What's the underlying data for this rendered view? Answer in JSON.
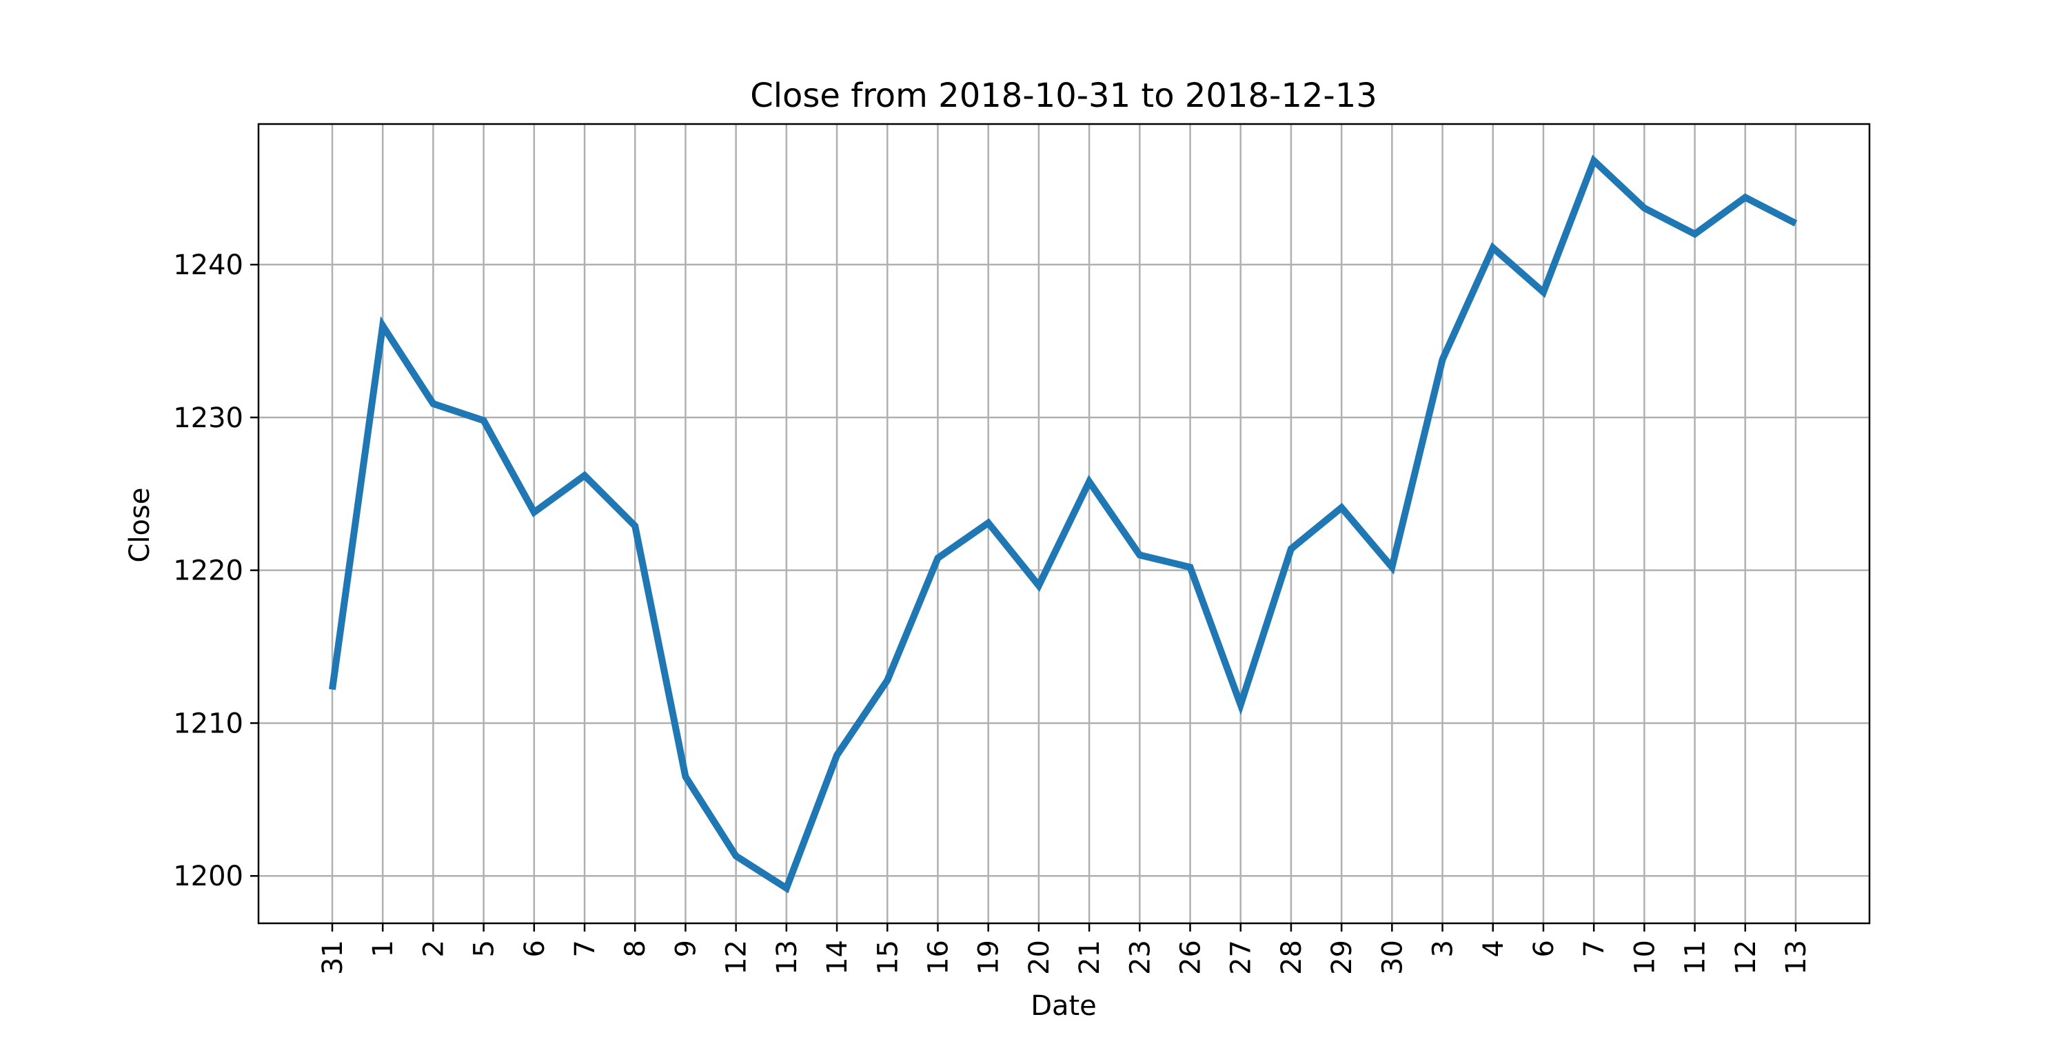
{
  "chart_data": {
    "type": "line",
    "title": "Close from 2018-10-31 to 2018-12-13",
    "xlabel": "Date",
    "ylabel": "Close",
    "grid": true,
    "ylim": [
      1196.9,
      1249.2
    ],
    "yticks": [
      1200,
      1210,
      1220,
      1230,
      1240
    ],
    "line_color": "#1f77b4",
    "dates": [
      "2018-10-31",
      "2018-11-01",
      "2018-11-02",
      "2018-11-05",
      "2018-11-06",
      "2018-11-07",
      "2018-11-08",
      "2018-11-09",
      "2018-11-12",
      "2018-11-13",
      "2018-11-14",
      "2018-11-15",
      "2018-11-16",
      "2018-11-19",
      "2018-11-20",
      "2018-11-21",
      "2018-11-23",
      "2018-11-26",
      "2018-11-27",
      "2018-11-28",
      "2018-11-29",
      "2018-11-30",
      "2018-12-03",
      "2018-12-04",
      "2018-12-06",
      "2018-12-07",
      "2018-12-10",
      "2018-12-11",
      "2018-12-12",
      "2018-12-13"
    ],
    "tick_labels": [
      "31",
      "1",
      "2",
      "5",
      "6",
      "7",
      "8",
      "9",
      "12",
      "13",
      "14",
      "15",
      "16",
      "19",
      "20",
      "21",
      "23",
      "26",
      "27",
      "28",
      "29",
      "30",
      "3",
      "4",
      "6",
      "7",
      "10",
      "11",
      "12",
      "13"
    ],
    "series": [
      {
        "values": [
          1212.2,
          1236.0,
          1230.9,
          1229.8,
          1223.8,
          1226.2,
          1222.9,
          1206.5,
          1201.3,
          1199.2,
          1207.9,
          1212.8,
          1220.8,
          1223.1,
          1219.0,
          1225.8,
          1221.0,
          1220.2,
          1211.2,
          1221.4,
          1224.1,
          1220.2,
          1233.8,
          1241.1,
          1238.2,
          1246.8,
          1243.7,
          1242.0,
          1244.4,
          1242.7
        ]
      }
    ]
  }
}
